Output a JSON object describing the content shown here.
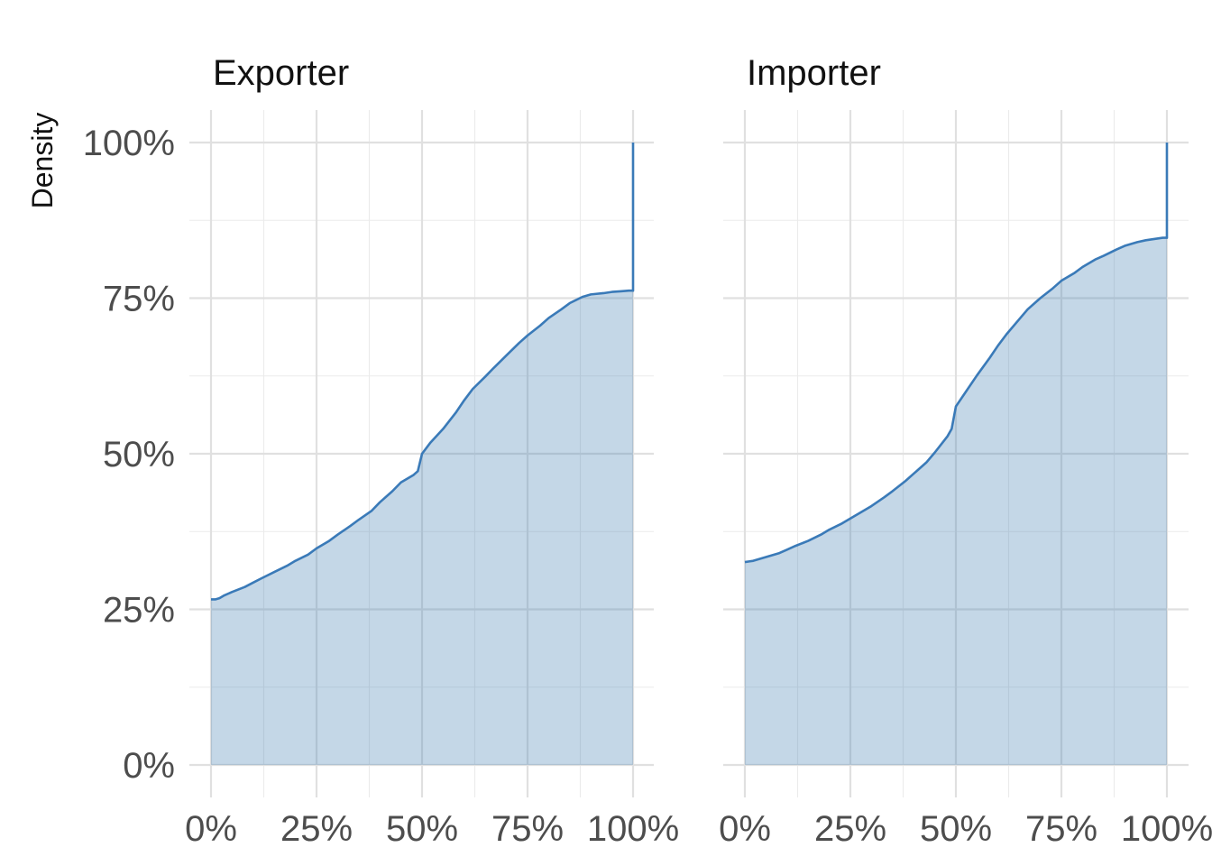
{
  "chart_data": {
    "type": "area",
    "ylabel": "Density",
    "xlabel": "",
    "xlim": [
      0,
      100
    ],
    "ylim": [
      0,
      100
    ],
    "x_ticks": [
      "0%",
      "25%",
      "50%",
      "75%",
      "100%"
    ],
    "y_ticks": [
      "0%",
      "25%",
      "50%",
      "75%",
      "100%"
    ],
    "x_tick_values": [
      0,
      25,
      50,
      75,
      100
    ],
    "y_tick_values": [
      0,
      25,
      50,
      75,
      100
    ],
    "color": "#4682b4",
    "grid": true,
    "panels": [
      {
        "title": "Exporter",
        "x": [
          0,
          1,
          2,
          3,
          5,
          8,
          10,
          12,
          15,
          18,
          20,
          23,
          25,
          28,
          30,
          33,
          35,
          38,
          40,
          43,
          45,
          48,
          49,
          50,
          52,
          55,
          58,
          60,
          62,
          65,
          67,
          70,
          73,
          75,
          78,
          80,
          83,
          85,
          88,
          90,
          93,
          95,
          97,
          99,
          100,
          100
        ],
        "y": [
          26.6,
          26.6,
          26.8,
          27.2,
          27.8,
          28.6,
          29.3,
          30.0,
          31.0,
          32.0,
          32.8,
          33.8,
          34.8,
          36.0,
          37.0,
          38.4,
          39.4,
          40.8,
          42.2,
          44.0,
          45.4,
          46.6,
          47.2,
          50.0,
          51.8,
          54.0,
          56.6,
          58.6,
          60.4,
          62.4,
          63.8,
          65.8,
          67.8,
          69.0,
          70.6,
          71.8,
          73.2,
          74.2,
          75.2,
          75.6,
          75.8,
          76.0,
          76.1,
          76.2,
          76.2,
          100.0
        ]
      },
      {
        "title": "Importer",
        "x": [
          0,
          1,
          2,
          3,
          5,
          8,
          10,
          12,
          15,
          18,
          20,
          23,
          25,
          28,
          30,
          33,
          35,
          38,
          40,
          43,
          45,
          48,
          49,
          50,
          52,
          55,
          58,
          60,
          62,
          65,
          67,
          70,
          73,
          75,
          78,
          80,
          83,
          85,
          88,
          90,
          93,
          95,
          97,
          99,
          100,
          100
        ],
        "y": [
          32.6,
          32.7,
          32.8,
          33.0,
          33.4,
          34.0,
          34.6,
          35.2,
          36.0,
          37.0,
          37.8,
          38.8,
          39.6,
          40.8,
          41.6,
          43.0,
          44.0,
          45.6,
          46.8,
          48.6,
          50.2,
          52.8,
          54.0,
          57.6,
          59.6,
          62.6,
          65.4,
          67.4,
          69.2,
          71.6,
          73.2,
          75.0,
          76.6,
          77.8,
          79.0,
          80.0,
          81.2,
          81.8,
          82.8,
          83.4,
          84.0,
          84.3,
          84.5,
          84.7,
          84.7,
          100.0
        ]
      }
    ]
  }
}
